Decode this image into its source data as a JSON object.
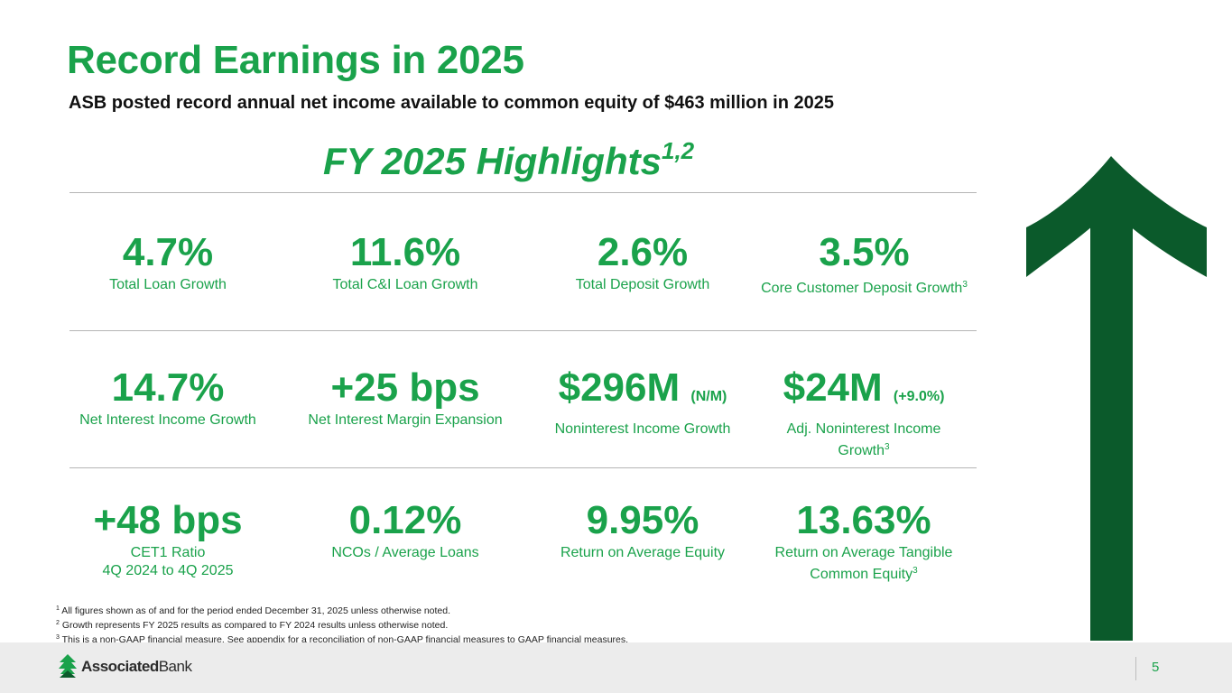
{
  "header": {
    "title": "Record Earnings in 2025",
    "subtitle": "ASB posted record annual net income available to common equity of $463 million in 2025"
  },
  "highlights": {
    "heading": "FY 2025 Highlights",
    "heading_sup": "1,2"
  },
  "metrics": [
    {
      "value": "4.7%",
      "note": "",
      "label": "Total Loan Growth",
      "label2": "",
      "sup": ""
    },
    {
      "value": "11.6%",
      "note": "",
      "label": "Total C&I Loan Growth",
      "label2": "",
      "sup": ""
    },
    {
      "value": "2.6%",
      "note": "",
      "label": "Total Deposit Growth",
      "label2": "",
      "sup": ""
    },
    {
      "value": "3.5%",
      "note": "",
      "label": "Core Customer Deposit Growth",
      "label2": "",
      "sup": "3"
    },
    {
      "value": "14.7%",
      "note": "",
      "label": "Net Interest Income Growth",
      "label2": "",
      "sup": ""
    },
    {
      "value": "+25 bps",
      "note": "",
      "label": "Net Interest Margin Expansion",
      "label2": "",
      "sup": ""
    },
    {
      "value": "$296M",
      "note": "(N/M)",
      "label": "Noninterest Income Growth",
      "label2": "",
      "sup": ""
    },
    {
      "value": "$24M",
      "note": "(+9.0%)",
      "label": "Adj. Noninterest Income",
      "label2": "Growth",
      "sup": "3"
    },
    {
      "value": "+48 bps",
      "note": "",
      "label": "CET1 Ratio",
      "label2": "4Q 2024 to 4Q 2025",
      "sup": ""
    },
    {
      "value": "0.12%",
      "note": "",
      "label": "NCOs / Average Loans",
      "label2": "",
      "sup": ""
    },
    {
      "value": "9.95%",
      "note": "",
      "label": "Return on Average Equity",
      "label2": "",
      "sup": ""
    },
    {
      "value": "13.63%",
      "note": "",
      "label": "Return on Average Tangible",
      "label2": "Common Equity",
      "sup": "3"
    }
  ],
  "footnotes": [
    {
      "num": "1",
      "text": "All figures shown as of and for the period ended December 31, 2025 unless otherwise noted."
    },
    {
      "num": "2",
      "text": "Growth represents FY 2025 results as compared to FY 2024 results unless otherwise noted."
    },
    {
      "num": "3",
      "text": "This is a non-GAAP financial measure. See appendix for a reconciliation of non-GAAP financial measures to GAAP financial measures."
    }
  ],
  "footer": {
    "logo_bold": "Associated",
    "logo_regular": "Bank",
    "page_number": "5"
  },
  "colors": {
    "accent": "#1aa24b",
    "arrow": "#0b5a2b",
    "footer_bg": "#ececec"
  }
}
